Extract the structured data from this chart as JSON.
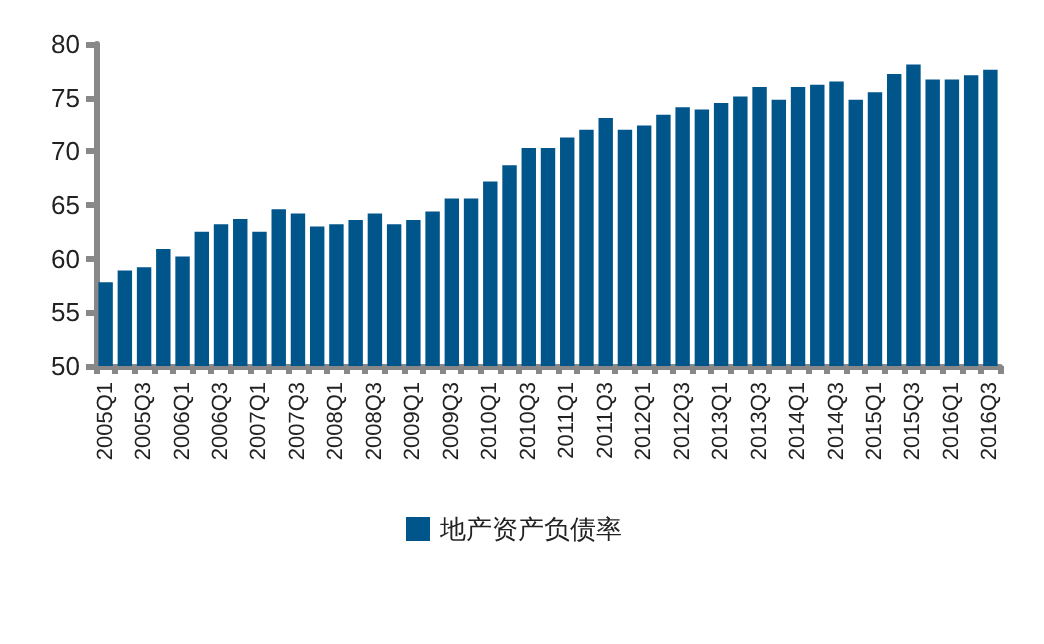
{
  "chart_data": {
    "type": "bar",
    "categories": [
      "2005Q1",
      null,
      "2005Q3",
      null,
      "2006Q1",
      null,
      "2006Q3",
      null,
      "2007Q1",
      null,
      "2007Q3",
      null,
      "2008Q1",
      null,
      "2008Q3",
      null,
      "2009Q1",
      null,
      "2009Q3",
      null,
      "2010Q1",
      null,
      "2010Q3",
      null,
      "2011Q1",
      null,
      "2011Q3",
      null,
      "2012Q1",
      null,
      "2012Q3",
      null,
      "2013Q1",
      null,
      "2013Q3",
      null,
      "2014Q1",
      null,
      "2014Q3",
      null,
      "2015Q1",
      null,
      "2015Q3",
      null,
      "2016Q1",
      null,
      "2016Q3"
    ],
    "series": [
      {
        "name": "地产资产负债率",
        "color": "#00558a",
        "values": [
          57.8,
          58.9,
          59.2,
          60.9,
          60.2,
          62.5,
          63.2,
          63.7,
          62.5,
          64.6,
          64.2,
          63.0,
          63.2,
          63.6,
          64.2,
          63.2,
          63.6,
          64.4,
          65.6,
          65.6,
          67.2,
          68.7,
          70.3,
          70.3,
          71.3,
          72.0,
          73.1,
          72.0,
          72.4,
          73.4,
          74.1,
          73.9,
          74.5,
          75.1,
          76.0,
          74.8,
          76.0,
          76.2,
          76.5,
          74.8,
          75.5,
          77.2,
          78.1,
          76.7,
          76.7,
          77.1,
          77.6
        ]
      }
    ],
    "ylim": [
      50,
      80
    ],
    "yticks": [
      50,
      55,
      60,
      65,
      70,
      75,
      80
    ],
    "grid": false,
    "legend": "bottom"
  }
}
